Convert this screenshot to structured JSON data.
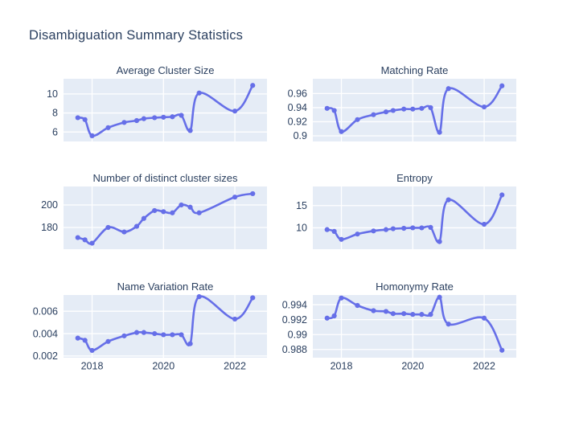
{
  "page": {
    "title": "Disambiguation Summary Statistics"
  },
  "colors": {
    "accent": "#666FE8",
    "plot_bg": "#E5ECF6",
    "grid": "#FFFFFF",
    "text": "#2A3F5F",
    "title_text": "#2A3F5F",
    "page_bg": "#FFFFFF"
  },
  "x_axis": {
    "range": [
      2017.2,
      2022.9
    ],
    "tick_values": [
      2018,
      2020,
      2022
    ],
    "tick_labels": [
      "2018",
      "2020",
      "2022"
    ]
  },
  "chart_data": [
    {
      "type": "line",
      "title": "Average Cluster Size",
      "x": [
        2017.6,
        2017.8,
        2018.0,
        2018.45,
        2018.9,
        2019.25,
        2019.45,
        2019.75,
        2020.0,
        2020.25,
        2020.5,
        2020.75,
        2021.0,
        2022.0,
        2022.5
      ],
      "values": [
        7.5,
        7.3,
        5.6,
        6.45,
        7.0,
        7.2,
        7.4,
        7.5,
        7.55,
        7.6,
        7.75,
        6.15,
        10.1,
        8.2,
        10.9
      ],
      "ylim": [
        5.0,
        11.6
      ],
      "ytick_values": [
        6,
        8,
        10
      ],
      "ytick_labels": [
        "6",
        "8",
        "10"
      ],
      "show_x_tick_labels": false,
      "grid": true,
      "line_shape": "spline",
      "markers": true
    },
    {
      "type": "line",
      "title": "Matching Rate",
      "x": [
        2017.6,
        2017.8,
        2018.0,
        2018.45,
        2018.9,
        2019.25,
        2019.45,
        2019.75,
        2020.0,
        2020.25,
        2020.5,
        2020.75,
        2021.0,
        2022.0,
        2022.5
      ],
      "values": [
        0.939,
        0.936,
        0.906,
        0.923,
        0.93,
        0.934,
        0.936,
        0.938,
        0.938,
        0.939,
        0.94,
        0.905,
        0.967,
        0.941,
        0.971
      ],
      "ylim": [
        0.892,
        0.981
      ],
      "ytick_values": [
        0.9,
        0.92,
        0.94,
        0.96
      ],
      "ytick_labels": [
        "0.9",
        "0.92",
        "0.94",
        "0.96"
      ],
      "show_x_tick_labels": false,
      "grid": true,
      "line_shape": "spline",
      "markers": true
    },
    {
      "type": "line",
      "title": "Number of distinct cluster sizes",
      "x": [
        2017.6,
        2017.8,
        2018.0,
        2018.45,
        2018.9,
        2019.25,
        2019.45,
        2019.75,
        2020.0,
        2020.25,
        2020.5,
        2020.75,
        2021.0,
        2022.0,
        2022.5
      ],
      "values": [
        171,
        169,
        166,
        180,
        176,
        181,
        188,
        195,
        194,
        193,
        200,
        198,
        193,
        207,
        210
      ],
      "ylim": [
        160.7,
        216.4
      ],
      "ytick_values": [
        180,
        200
      ],
      "ytick_labels": [
        "180",
        "200"
      ],
      "show_x_tick_labels": false,
      "grid": true,
      "line_shape": "spline",
      "markers": true
    },
    {
      "type": "line",
      "title": "Entropy",
      "x": [
        2017.6,
        2017.8,
        2018.0,
        2018.45,
        2018.9,
        2019.25,
        2019.45,
        2019.75,
        2020.0,
        2020.25,
        2020.5,
        2020.75,
        2021.0,
        2022.0,
        2022.5
      ],
      "values": [
        9.6,
        9.2,
        7.4,
        8.6,
        9.3,
        9.6,
        9.8,
        9.9,
        10.0,
        10.0,
        10.1,
        6.9,
        16.3,
        10.8,
        17.4
      ],
      "ylim": [
        5.2,
        19.3
      ],
      "ytick_values": [
        10,
        15
      ],
      "ytick_labels": [
        "10",
        "15"
      ],
      "show_x_tick_labels": false,
      "grid": true,
      "line_shape": "spline",
      "markers": true
    },
    {
      "type": "line",
      "title": "Name Variation Rate",
      "x": [
        2017.6,
        2017.8,
        2018.0,
        2018.45,
        2018.9,
        2019.25,
        2019.45,
        2019.75,
        2020.0,
        2020.25,
        2020.5,
        2020.75,
        2021.0,
        2022.0,
        2022.5
      ],
      "values": [
        0.0036,
        0.0034,
        0.0025,
        0.0033,
        0.0038,
        0.0041,
        0.0041,
        0.004,
        0.0039,
        0.0039,
        0.0039,
        0.0031,
        0.0073,
        0.0053,
        0.0072
      ],
      "ylim": [
        0.00185,
        0.00745
      ],
      "ytick_values": [
        0.002,
        0.004,
        0.006
      ],
      "ytick_labels": [
        "0.002",
        "0.004",
        "0.006"
      ],
      "show_x_tick_labels": true,
      "grid": true,
      "line_shape": "spline",
      "markers": true
    },
    {
      "type": "line",
      "title": "Homonymy Rate",
      "x": [
        2017.6,
        2017.8,
        2018.0,
        2018.45,
        2018.9,
        2019.25,
        2019.45,
        2019.75,
        2020.0,
        2020.25,
        2020.5,
        2020.75,
        2021.0,
        2022.0,
        2022.5
      ],
      "values": [
        0.9922,
        0.9925,
        0.9949,
        0.9939,
        0.9932,
        0.9931,
        0.9928,
        0.9928,
        0.9927,
        0.9927,
        0.9927,
        0.995,
        0.9914,
        0.9922,
        0.9879
      ],
      "ylim": [
        0.9869,
        0.9953
      ],
      "ytick_values": [
        0.988,
        0.99,
        0.992,
        0.994
      ],
      "ytick_labels": [
        "0.988",
        "0.99",
        "0.992",
        "0.994"
      ],
      "show_x_tick_labels": true,
      "grid": true,
      "line_shape": "spline",
      "markers": true
    }
  ]
}
